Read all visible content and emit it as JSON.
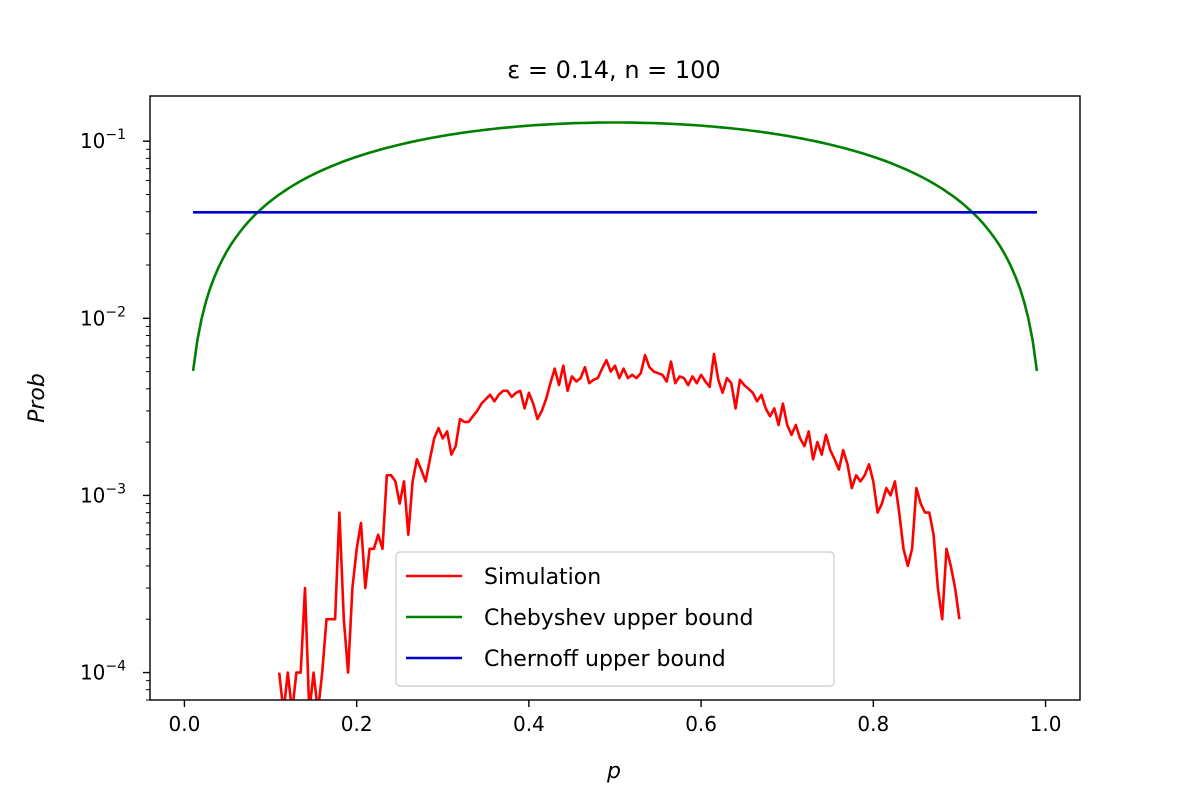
{
  "chart_data": {
    "type": "line",
    "title": "ε = 0.14, n = 100",
    "xlabel": "p",
    "ylabel": "Prob",
    "xlim": [
      -0.04,
      1.04
    ],
    "ylim": [
      7e-05,
      0.18
    ],
    "yscale": "log",
    "xticks": [
      0.0,
      0.2,
      0.4,
      0.6,
      0.8,
      1.0
    ],
    "xtick_labels": [
      "0.0",
      "0.2",
      "0.4",
      "0.6",
      "0.8",
      "1.0"
    ],
    "yticks": [
      0.0001,
      0.001,
      0.01,
      0.1
    ],
    "ytick_base": [
      "10",
      "10",
      "10",
      "10"
    ],
    "ytick_exp": [
      "−4",
      "−3",
      "−2",
      "−1"
    ],
    "grid": false,
    "legend_position": "bottom-center",
    "series": [
      {
        "name": "Simulation",
        "color": "#ff0000",
        "x": [
          0.11,
          0.115,
          0.12,
          0.125,
          0.13,
          0.135,
          0.14,
          0.145,
          0.15,
          0.155,
          0.16,
          0.165,
          0.17,
          0.175,
          0.18,
          0.185,
          0.19,
          0.195,
          0.2,
          0.205,
          0.21,
          0.215,
          0.22,
          0.225,
          0.23,
          0.235,
          0.24,
          0.245,
          0.25,
          0.255,
          0.26,
          0.265,
          0.27,
          0.275,
          0.28,
          0.285,
          0.29,
          0.295,
          0.3,
          0.305,
          0.31,
          0.315,
          0.32,
          0.325,
          0.33,
          0.335,
          0.34,
          0.345,
          0.35,
          0.355,
          0.36,
          0.365,
          0.37,
          0.375,
          0.38,
          0.385,
          0.39,
          0.395,
          0.4,
          0.405,
          0.41,
          0.415,
          0.42,
          0.425,
          0.43,
          0.435,
          0.44,
          0.445,
          0.45,
          0.455,
          0.46,
          0.465,
          0.47,
          0.475,
          0.48,
          0.485,
          0.49,
          0.495,
          0.5,
          0.505,
          0.51,
          0.515,
          0.52,
          0.525,
          0.53,
          0.535,
          0.54,
          0.545,
          0.55,
          0.555,
          0.56,
          0.565,
          0.57,
          0.575,
          0.58,
          0.585,
          0.59,
          0.595,
          0.6,
          0.605,
          0.61,
          0.615,
          0.62,
          0.625,
          0.63,
          0.635,
          0.64,
          0.645,
          0.65,
          0.655,
          0.66,
          0.665,
          0.67,
          0.675,
          0.68,
          0.685,
          0.69,
          0.695,
          0.7,
          0.705,
          0.71,
          0.715,
          0.72,
          0.725,
          0.73,
          0.735,
          0.74,
          0.745,
          0.75,
          0.755,
          0.76,
          0.765,
          0.77,
          0.775,
          0.78,
          0.785,
          0.79,
          0.795,
          0.8,
          0.805,
          0.81,
          0.815,
          0.82,
          0.825,
          0.83,
          0.835,
          0.84,
          0.845,
          0.85,
          0.855,
          0.86,
          0.865,
          0.87,
          0.875,
          0.88,
          0.885,
          0.89,
          0.895,
          0.9
        ],
        "y": [
          0.0001,
          6e-05,
          0.0001,
          6e-05,
          0.0001,
          0.0001,
          0.0003,
          6e-05,
          0.0001,
          6e-05,
          0.0001,
          0.0002,
          0.0002,
          0.0002,
          0.0008,
          0.0002,
          0.0001,
          0.0003,
          0.0005,
          0.0007,
          0.0003,
          0.0005,
          0.0005,
          0.0006,
          0.0005,
          0.0013,
          0.0013,
          0.0012,
          0.0009,
          0.0012,
          0.0006,
          0.0012,
          0.0016,
          0.0014,
          0.0012,
          0.0016,
          0.0021,
          0.0024,
          0.0021,
          0.0023,
          0.0017,
          0.0019,
          0.0027,
          0.0026,
          0.0026,
          0.0028,
          0.003,
          0.0033,
          0.0035,
          0.0037,
          0.0034,
          0.0037,
          0.0039,
          0.0039,
          0.0036,
          0.0038,
          0.0039,
          0.0031,
          0.0038,
          0.0033,
          0.0027,
          0.003,
          0.0035,
          0.0043,
          0.0052,
          0.0042,
          0.0054,
          0.0039,
          0.0047,
          0.0044,
          0.0046,
          0.0053,
          0.0043,
          0.0045,
          0.0046,
          0.0052,
          0.0058,
          0.005,
          0.0054,
          0.0046,
          0.0052,
          0.0046,
          0.0048,
          0.0046,
          0.0049,
          0.0062,
          0.0053,
          0.005,
          0.0049,
          0.0048,
          0.0044,
          0.0057,
          0.0043,
          0.0047,
          0.0046,
          0.0042,
          0.0047,
          0.0043,
          0.0048,
          0.0044,
          0.0041,
          0.0063,
          0.0045,
          0.0038,
          0.0046,
          0.0043,
          0.0031,
          0.0045,
          0.0042,
          0.004,
          0.0038,
          0.0034,
          0.0037,
          0.0031,
          0.0028,
          0.0031,
          0.0025,
          0.0033,
          0.0025,
          0.0022,
          0.0025,
          0.0021,
          0.0019,
          0.0023,
          0.0016,
          0.002,
          0.0017,
          0.0022,
          0.0018,
          0.0016,
          0.0014,
          0.0018,
          0.0015,
          0.0011,
          0.0013,
          0.0012,
          0.0013,
          0.0015,
          0.0012,
          0.0008,
          0.0009,
          0.0011,
          0.001,
          0.0012,
          0.0008,
          0.0005,
          0.0004,
          0.0005,
          0.0011,
          0.0009,
          0.0008,
          0.0008,
          0.0006,
          0.0003,
          0.0002,
          0.0005,
          0.0004,
          0.0003,
          0.0002
        ]
      },
      {
        "name": "Chebyshev upper bound",
        "color": "#008000",
        "formula": "p(1-p)/(n eps^2)",
        "x_range": [
          0.01,
          0.99
        ],
        "n": 100,
        "eps": 0.14
      },
      {
        "name": "Chernoff upper bound",
        "color": "#0000cc",
        "x": [
          0.01,
          0.99
        ],
        "y": [
          0.0397,
          0.0397
        ]
      }
    ]
  }
}
